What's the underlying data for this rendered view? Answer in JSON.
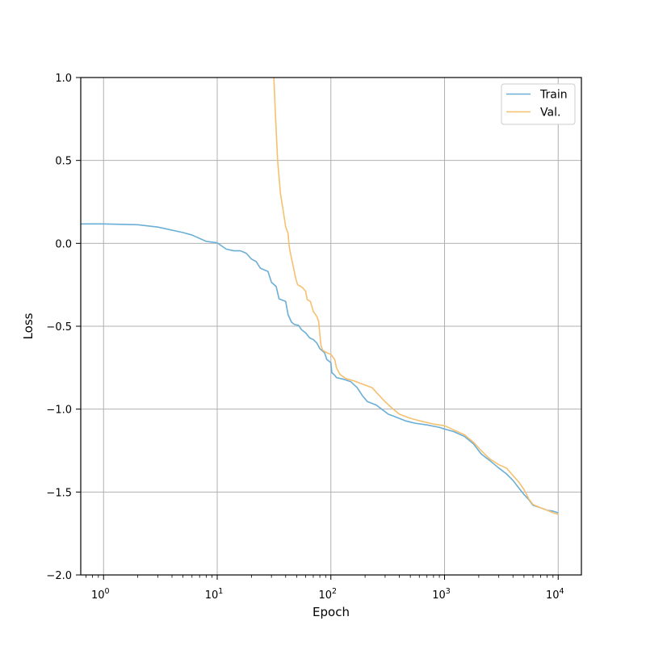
{
  "chart_data": {
    "type": "line",
    "xlabel": "Epoch",
    "ylabel": "Loss",
    "xscale": "log",
    "xlim": [
      0.63,
      16000
    ],
    "ylim": [
      -2.0,
      1.0
    ],
    "grid": true,
    "legend_position": "top-right",
    "x_ticks": [
      1,
      10,
      100,
      1000,
      10000
    ],
    "x_tick_labels": [
      {
        "base": "10",
        "exp": "0"
      },
      {
        "base": "10",
        "exp": "1"
      },
      {
        "base": "10",
        "exp": "2"
      },
      {
        "base": "10",
        "exp": "3"
      },
      {
        "base": "10",
        "exp": "4"
      }
    ],
    "y_ticks": [
      1.0,
      0.5,
      0.0,
      -0.5,
      -1.0,
      -1.5,
      -2.0
    ],
    "y_tick_labels": [
      "1.0",
      "0.5",
      "0.0",
      "−0.5",
      "−1.0",
      "−1.5",
      "−2.0"
    ],
    "series": [
      {
        "name": "Train",
        "color": "#6baed6",
        "points": [
          [
            0.63,
            0.117
          ],
          [
            1,
            0.117
          ],
          [
            2,
            0.112
          ],
          [
            3,
            0.098
          ],
          [
            5,
            0.065
          ],
          [
            6,
            0.05
          ],
          [
            8,
            0.012
          ],
          [
            10,
            0.003
          ],
          [
            12,
            -0.035
          ],
          [
            14,
            -0.045
          ],
          [
            16,
            -0.045
          ],
          [
            18,
            -0.06
          ],
          [
            20,
            -0.095
          ],
          [
            22,
            -0.11
          ],
          [
            24,
            -0.15
          ],
          [
            28,
            -0.17
          ],
          [
            30,
            -0.235
          ],
          [
            33,
            -0.26
          ],
          [
            35,
            -0.335
          ],
          [
            40,
            -0.35
          ],
          [
            42,
            -0.43
          ],
          [
            45,
            -0.475
          ],
          [
            48,
            -0.49
          ],
          [
            52,
            -0.495
          ],
          [
            55,
            -0.52
          ],
          [
            60,
            -0.54
          ],
          [
            65,
            -0.57
          ],
          [
            70,
            -0.58
          ],
          [
            75,
            -0.6
          ],
          [
            80,
            -0.635
          ],
          [
            88,
            -0.66
          ],
          [
            92,
            -0.7
          ],
          [
            100,
            -0.72
          ],
          [
            102,
            -0.78
          ],
          [
            108,
            -0.795
          ],
          [
            112,
            -0.81
          ],
          [
            130,
            -0.82
          ],
          [
            150,
            -0.835
          ],
          [
            170,
            -0.87
          ],
          [
            190,
            -0.92
          ],
          [
            210,
            -0.955
          ],
          [
            250,
            -0.975
          ],
          [
            280,
            -1.0
          ],
          [
            320,
            -1.03
          ],
          [
            380,
            -1.05
          ],
          [
            450,
            -1.07
          ],
          [
            550,
            -1.085
          ],
          [
            700,
            -1.095
          ],
          [
            900,
            -1.11
          ],
          [
            1000,
            -1.12
          ],
          [
            1200,
            -1.135
          ],
          [
            1500,
            -1.165
          ],
          [
            1800,
            -1.21
          ],
          [
            2100,
            -1.27
          ],
          [
            2500,
            -1.31
          ],
          [
            3000,
            -1.355
          ],
          [
            3500,
            -1.39
          ],
          [
            4000,
            -1.43
          ],
          [
            4500,
            -1.475
          ],
          [
            5000,
            -1.515
          ],
          [
            5500,
            -1.545
          ],
          [
            6000,
            -1.58
          ],
          [
            7000,
            -1.595
          ],
          [
            8000,
            -1.61
          ],
          [
            9000,
            -1.615
          ],
          [
            10000,
            -1.625
          ]
        ]
      },
      {
        "name": "Val.",
        "color": "#f5c06f",
        "points": [
          [
            31.5,
            1.0
          ],
          [
            32.5,
            0.78
          ],
          [
            34,
            0.5
          ],
          [
            36,
            0.3
          ],
          [
            38,
            0.2
          ],
          [
            40,
            0.1
          ],
          [
            42,
            0.06
          ],
          [
            43,
            -0.02
          ],
          [
            45,
            -0.09
          ],
          [
            47,
            -0.15
          ],
          [
            49,
            -0.21
          ],
          [
            51,
            -0.25
          ],
          [
            56,
            -0.265
          ],
          [
            60,
            -0.29
          ],
          [
            62,
            -0.34
          ],
          [
            66,
            -0.35
          ],
          [
            70,
            -0.41
          ],
          [
            75,
            -0.44
          ],
          [
            78,
            -0.47
          ],
          [
            80,
            -0.55
          ],
          [
            82,
            -0.62
          ],
          [
            85,
            -0.645
          ],
          [
            92,
            -0.66
          ],
          [
            100,
            -0.67
          ],
          [
            108,
            -0.7
          ],
          [
            112,
            -0.75
          ],
          [
            120,
            -0.79
          ],
          [
            135,
            -0.815
          ],
          [
            160,
            -0.83
          ],
          [
            200,
            -0.855
          ],
          [
            230,
            -0.87
          ],
          [
            260,
            -0.91
          ],
          [
            300,
            -0.955
          ],
          [
            340,
            -0.99
          ],
          [
            400,
            -1.03
          ],
          [
            500,
            -1.055
          ],
          [
            600,
            -1.07
          ],
          [
            800,
            -1.09
          ],
          [
            1000,
            -1.1
          ],
          [
            1200,
            -1.125
          ],
          [
            1500,
            -1.155
          ],
          [
            1800,
            -1.2
          ],
          [
            2100,
            -1.25
          ],
          [
            2500,
            -1.3
          ],
          [
            3000,
            -1.335
          ],
          [
            3500,
            -1.355
          ],
          [
            4000,
            -1.4
          ],
          [
            4500,
            -1.44
          ],
          [
            5000,
            -1.485
          ],
          [
            5500,
            -1.54
          ],
          [
            6000,
            -1.575
          ],
          [
            7000,
            -1.595
          ],
          [
            8000,
            -1.61
          ],
          [
            9000,
            -1.625
          ],
          [
            10000,
            -1.635
          ]
        ]
      }
    ]
  }
}
